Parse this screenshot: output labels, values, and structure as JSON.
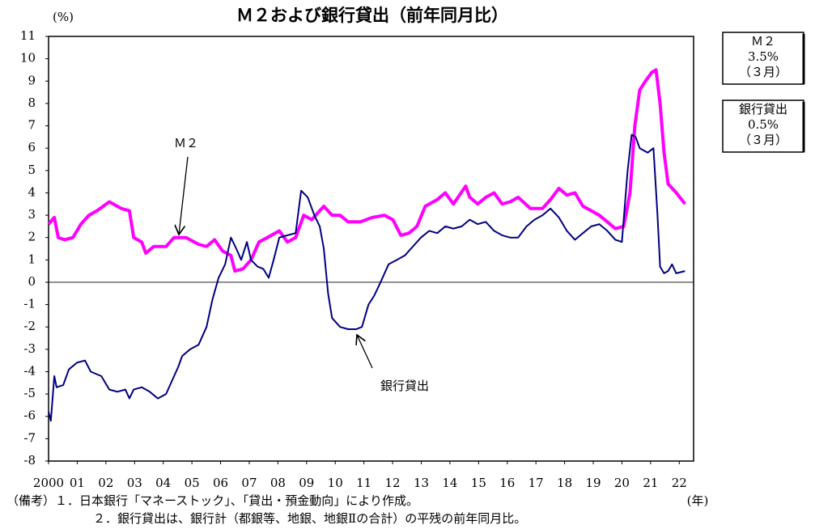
{
  "chart_data": {
    "type": "line",
    "title": "Ｍ２および銀行貸出（前年同月比）",
    "y_unit": "(%)",
    "x_unit": "(年)",
    "xlim": [
      2000,
      2022.5
    ],
    "ylim": [
      -8,
      11
    ],
    "yticks": [
      -8,
      -7,
      -6,
      -5,
      -4,
      -3,
      -2,
      -1,
      0,
      1,
      2,
      3,
      4,
      5,
      6,
      7,
      8,
      9,
      10,
      11
    ],
    "xticks": [
      {
        "value": 2000,
        "label": "2000"
      },
      {
        "value": 2001,
        "label": "01"
      },
      {
        "value": 2002,
        "label": "02"
      },
      {
        "value": 2003,
        "label": "03"
      },
      {
        "value": 2004,
        "label": "04"
      },
      {
        "value": 2005,
        "label": "05"
      },
      {
        "value": 2006,
        "label": "06"
      },
      {
        "value": 2007,
        "label": "07"
      },
      {
        "value": 2008,
        "label": "08"
      },
      {
        "value": 2009,
        "label": "09"
      },
      {
        "value": 2010,
        "label": "10"
      },
      {
        "value": 2011,
        "label": "11"
      },
      {
        "value": 2012,
        "label": "12"
      },
      {
        "value": 2013,
        "label": "13"
      },
      {
        "value": 2014,
        "label": "14"
      },
      {
        "value": 2015,
        "label": "15"
      },
      {
        "value": 2016,
        "label": "16"
      },
      {
        "value": 2017,
        "label": "17"
      },
      {
        "value": 2018,
        "label": "18"
      },
      {
        "value": 2019,
        "label": "19"
      },
      {
        "value": 2020,
        "label": "20"
      },
      {
        "value": 2021,
        "label": "21"
      },
      {
        "value": 2022,
        "label": "22"
      }
    ],
    "series": [
      {
        "name": "Ｍ２",
        "color": "#ff00ff",
        "width": 4,
        "x": [
          2000.0,
          2000.2,
          2000.34,
          2000.56,
          2000.85,
          2001.13,
          2001.41,
          2001.69,
          2002.12,
          2002.54,
          2002.82,
          2002.97,
          2003.25,
          2003.39,
          2003.67,
          2004.1,
          2004.38,
          2004.8,
          2005.23,
          2005.51,
          2005.79,
          2006.07,
          2006.36,
          2006.5,
          2006.78,
          2007.06,
          2007.34,
          2007.63,
          2008.05,
          2008.33,
          2008.62,
          2008.9,
          2009.18,
          2009.6,
          2009.89,
          2010.17,
          2010.45,
          2010.88,
          2011.3,
          2011.72,
          2012.01,
          2012.29,
          2012.57,
          2012.85,
          2013.14,
          2013.56,
          2013.84,
          2014.12,
          2014.55,
          2014.69,
          2014.97,
          2015.25,
          2015.54,
          2015.82,
          2016.1,
          2016.38,
          2016.81,
          2017.23,
          2017.51,
          2017.8,
          2018.08,
          2018.36,
          2018.64,
          2018.93,
          2019.21,
          2019.49,
          2019.77,
          2020.06,
          2020.28,
          2020.45,
          2020.62,
          2020.82,
          2021.05,
          2021.19,
          2021.33,
          2021.47,
          2021.61,
          2021.9,
          2022.2
        ],
        "values": [
          2.6,
          2.9,
          2.0,
          1.9,
          2.0,
          2.6,
          3.0,
          3.2,
          3.6,
          3.3,
          3.2,
          2.0,
          1.8,
          1.3,
          1.6,
          1.6,
          2.0,
          2.0,
          1.7,
          1.6,
          1.9,
          1.4,
          1.2,
          0.5,
          0.6,
          1.0,
          1.8,
          2.0,
          2.3,
          1.8,
          2.0,
          3.0,
          2.8,
          3.4,
          3.0,
          3.0,
          2.7,
          2.7,
          2.9,
          3.0,
          2.8,
          2.1,
          2.2,
          2.5,
          3.4,
          3.7,
          4.0,
          3.5,
          4.3,
          3.8,
          3.5,
          3.8,
          4.0,
          3.5,
          3.6,
          3.8,
          3.3,
          3.3,
          3.7,
          4.2,
          3.9,
          4.0,
          3.4,
          3.2,
          3.0,
          2.7,
          2.4,
          2.5,
          4.0,
          7.0,
          8.6,
          9.0,
          9.4,
          9.5,
          8.0,
          5.8,
          4.4,
          4.0,
          3.5
        ]
      },
      {
        "name": "銀行貸出",
        "color": "#000080",
        "width": 2,
        "x": [
          2000.0,
          2000.08,
          2000.2,
          2000.28,
          2000.51,
          2000.71,
          2000.99,
          2001.27,
          2001.47,
          2001.84,
          2002.12,
          2002.4,
          2002.68,
          2002.82,
          2002.97,
          2003.25,
          2003.53,
          2003.81,
          2004.1,
          2004.38,
          2004.52,
          2004.66,
          2004.94,
          2005.23,
          2005.51,
          2005.71,
          2005.93,
          2006.16,
          2006.36,
          2006.55,
          2006.72,
          2006.92,
          2007.06,
          2007.29,
          2007.49,
          2007.68,
          2007.85,
          2008.05,
          2008.33,
          2008.62,
          2008.81,
          2009.04,
          2009.27,
          2009.46,
          2009.6,
          2009.75,
          2009.89,
          2010.17,
          2010.45,
          2010.73,
          2010.93,
          2011.16,
          2011.36,
          2011.58,
          2011.86,
          2012.15,
          2012.43,
          2012.71,
          2012.99,
          2013.28,
          2013.56,
          2013.84,
          2014.12,
          2014.41,
          2014.69,
          2014.97,
          2015.25,
          2015.54,
          2015.82,
          2016.1,
          2016.38,
          2016.67,
          2016.95,
          2017.23,
          2017.51,
          2017.8,
          2018.08,
          2018.36,
          2018.64,
          2018.93,
          2019.21,
          2019.49,
          2019.77,
          2020.0,
          2020.2,
          2020.34,
          2020.48,
          2020.62,
          2020.9,
          2021.1,
          2021.24,
          2021.33,
          2021.47,
          2021.61,
          2021.75,
          2021.89,
          2022.2
        ],
        "values": [
          -5.8,
          -6.2,
          -4.2,
          -4.7,
          -4.6,
          -3.9,
          -3.6,
          -3.5,
          -4.0,
          -4.2,
          -4.8,
          -4.9,
          -4.8,
          -5.2,
          -4.8,
          -4.7,
          -4.9,
          -5.2,
          -5.0,
          -4.2,
          -3.8,
          -3.3,
          -3.0,
          -2.8,
          -2.0,
          -0.8,
          0.2,
          0.8,
          2.0,
          1.5,
          1.0,
          1.8,
          1.0,
          0.7,
          0.6,
          0.2,
          1.0,
          2.0,
          2.1,
          2.2,
          4.1,
          3.8,
          3.0,
          2.5,
          1.5,
          -0.5,
          -1.6,
          -2.0,
          -2.1,
          -2.1,
          -2.0,
          -1.0,
          -0.6,
          0.0,
          0.8,
          1.0,
          1.2,
          1.6,
          2.0,
          2.3,
          2.2,
          2.5,
          2.4,
          2.5,
          2.8,
          2.6,
          2.7,
          2.3,
          2.1,
          2.0,
          2.0,
          2.5,
          2.8,
          3.0,
          3.3,
          2.9,
          2.3,
          1.9,
          2.2,
          2.5,
          2.6,
          2.3,
          1.9,
          1.8,
          5.0,
          6.6,
          6.5,
          6.0,
          5.8,
          6.0,
          3.0,
          0.7,
          0.4,
          0.5,
          0.8,
          0.4,
          0.5
        ]
      }
    ],
    "boxes": [
      [
        "Ｍ２",
        "3.5%",
        "（３月）"
      ],
      [
        "銀行貸出",
        "0.5%",
        "（３月）"
      ]
    ],
    "notes": [
      "（備考）１．日本銀行「マネーストック」、「貸出・預金動向」により作成。",
      "２．銀行貸出は、銀行計（都銀等、地銀、地銀Ⅱの合計）の平残の前年同月比。"
    ]
  }
}
